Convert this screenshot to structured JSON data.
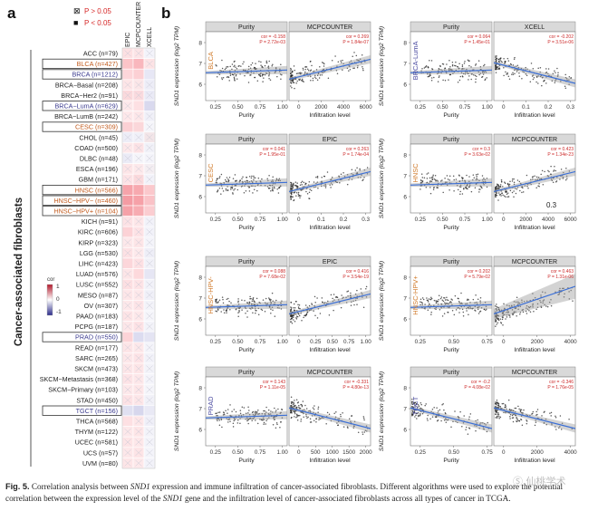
{
  "panel_a": {
    "letter": "a",
    "legend": {
      "ns": "P > 0.05",
      "sig": "P < 0.05",
      "ns_mark": "⊠",
      "sig_mark": "■"
    },
    "columns": [
      "EPIC",
      "MCPCOUNTER",
      "XCELL"
    ],
    "side_label": "Cancer-associated fibroblasts",
    "colorbar": {
      "title": "cor",
      "ticks": [
        "1",
        "0",
        "-1"
      ]
    },
    "rows": [
      {
        "label": "ACC (n=79)",
        "color": "#222222",
        "box": false,
        "cells": [
          [
            "#fde0e2",
            0
          ],
          [
            "#fce4e6",
            0
          ],
          [
            "#f3f3fa",
            0
          ]
        ]
      },
      {
        "label": "BLCA (n=427)",
        "color": "#c25b1e",
        "box": true,
        "cells": [
          [
            "#fbc4c8",
            1
          ],
          [
            "#f9b7bd",
            1
          ],
          [
            "#fde3e5",
            0
          ]
        ]
      },
      {
        "label": "BRCA (n=1212)",
        "color": "#3b3b8f",
        "box": true,
        "cells": [
          [
            "#fdd6da",
            1
          ],
          [
            "#fcd0d4",
            1
          ],
          [
            "#e7e7f5",
            1
          ]
        ]
      },
      {
        "label": "BRCA−Basal (n=208)",
        "color": "#222222",
        "box": false,
        "cells": [
          [
            "#fde5e7",
            0
          ],
          [
            "#fbe6e8",
            0
          ],
          [
            "#ededf7",
            0
          ]
        ]
      },
      {
        "label": "BRCA−Her2 (n=91)",
        "color": "#222222",
        "box": false,
        "cells": [
          [
            "#fbd9dc",
            0
          ],
          [
            "#fadade",
            0
          ],
          [
            "#eaeaf6",
            0
          ]
        ]
      },
      {
        "label": "BRCA−LumA (n=629)",
        "color": "#3b3b8f",
        "box": true,
        "cells": [
          [
            "#fde8ea",
            0
          ],
          [
            "#fde0e3",
            1
          ],
          [
            "#d9d9ee",
            1
          ]
        ]
      },
      {
        "label": "BRCA−LumB (n=242)",
        "color": "#222222",
        "box": false,
        "cells": [
          [
            "#fee8ea",
            0
          ],
          [
            "#fde7e9",
            0
          ],
          [
            "#f0f0f8",
            0
          ]
        ]
      },
      {
        "label": "CESC (n=309)",
        "color": "#c25b1e",
        "box": true,
        "cells": [
          [
            "#fbd0d4",
            1
          ],
          [
            "#fbd7da",
            1
          ],
          [
            "#f5f5fa",
            0
          ]
        ]
      },
      {
        "label": "CHOL (n=45)",
        "color": "#222222",
        "box": false,
        "cells": [
          [
            "#ededf7",
            0
          ],
          [
            "#f0f0f8",
            0
          ],
          [
            "#f3e5e8",
            0
          ]
        ]
      },
      {
        "label": "COAD (n=500)",
        "color": "#222222",
        "box": false,
        "cells": [
          [
            "#fde8ea",
            0
          ],
          [
            "#fce2e5",
            0
          ],
          [
            "#f1f1f8",
            0
          ]
        ]
      },
      {
        "label": "DLBC (n=48)",
        "color": "#222222",
        "box": false,
        "cells": [
          [
            "#ebebf6",
            0
          ],
          [
            "#f5f5fa",
            0
          ],
          [
            "#f4f4fa",
            0
          ]
        ]
      },
      {
        "label": "ESCA (n=196)",
        "color": "#222222",
        "box": false,
        "cells": [
          [
            "#fde5e7",
            0
          ],
          [
            "#fde9eb",
            0
          ],
          [
            "#f4eef2",
            0
          ]
        ]
      },
      {
        "label": "GBM (n=171)",
        "color": "#222222",
        "box": false,
        "cells": [
          [
            "#fde3e6",
            0
          ],
          [
            "#fbd9dc",
            0
          ],
          [
            "#f2f2f9",
            0
          ]
        ]
      },
      {
        "label": "HNSC (n=566)",
        "color": "#c25b1e",
        "box": true,
        "cells": [
          [
            "#f6a3aa",
            1
          ],
          [
            "#f7a9af",
            1
          ],
          [
            "#fbc8cc",
            1
          ]
        ]
      },
      {
        "label": "HNSC−HPV− (n=460)",
        "color": "#c25b1e",
        "box": true,
        "cells": [
          [
            "#f49ba3",
            1
          ],
          [
            "#f6a1a8",
            1
          ],
          [
            "#fac2c7",
            1
          ]
        ]
      },
      {
        "label": "HNSC−HPV+ (n=104)",
        "color": "#c25b1e",
        "box": true,
        "cells": [
          [
            "#f5a1a8",
            1
          ],
          [
            "#f7acb2",
            1
          ],
          [
            "#fbcdd1",
            1
          ]
        ]
      },
      {
        "label": "KICH (n=91)",
        "color": "#222222",
        "box": false,
        "cells": [
          [
            "#fde2e5",
            0
          ],
          [
            "#fde6e8",
            0
          ],
          [
            "#f2f2f9",
            0
          ]
        ]
      },
      {
        "label": "KIRC (n=606)",
        "color": "#222222",
        "box": false,
        "cells": [
          [
            "#fcd2d6",
            1
          ],
          [
            "#fde2e5",
            0
          ],
          [
            "#f2f2f9",
            0
          ]
        ]
      },
      {
        "label": "KIRP (n=323)",
        "color": "#222222",
        "box": false,
        "cells": [
          [
            "#fde8ea",
            0
          ],
          [
            "#fde5e7",
            0
          ],
          [
            "#f4f4fa",
            0
          ]
        ]
      },
      {
        "label": "LGG (n=530)",
        "color": "#222222",
        "box": false,
        "cells": [
          [
            "#fde1e4",
            0
          ],
          [
            "#fde9eb",
            0
          ],
          [
            "#eeeef7",
            0
          ]
        ]
      },
      {
        "label": "LIHC (n=423)",
        "color": "#222222",
        "box": false,
        "cells": [
          [
            "#fcd6da",
            1
          ],
          [
            "#fde0e3",
            0
          ],
          [
            "#f1f1f8",
            0
          ]
        ]
      },
      {
        "label": "LUAD (n=576)",
        "color": "#222222",
        "box": false,
        "cells": [
          [
            "#fde5e7",
            0
          ],
          [
            "#fdd9dc",
            1
          ],
          [
            "#e6e6f4",
            1
          ]
        ]
      },
      {
        "label": "LUSC (n=552)",
        "color": "#222222",
        "box": false,
        "cells": [
          [
            "#fddfe2",
            0
          ],
          [
            "#fde3e6",
            0
          ],
          [
            "#f2f2f9",
            0
          ]
        ]
      },
      {
        "label": "MESO (n=87)",
        "color": "#222222",
        "box": false,
        "cells": [
          [
            "#fde6e8",
            0
          ],
          [
            "#fde8ea",
            0
          ],
          [
            "#f0f0f8",
            0
          ]
        ]
      },
      {
        "label": "OV (n=307)",
        "color": "#222222",
        "box": false,
        "cells": [
          [
            "#fde8ea",
            0
          ],
          [
            "#fde4e7",
            0
          ],
          [
            "#f3f3f9",
            0
          ]
        ]
      },
      {
        "label": "PAAD (n=183)",
        "color": "#222222",
        "box": false,
        "cells": [
          [
            "#fde4e6",
            0
          ],
          [
            "#fde8ea",
            0
          ],
          [
            "#f5f5fa",
            0
          ]
        ]
      },
      {
        "label": "PCPG (n=187)",
        "color": "#222222",
        "box": false,
        "cells": [
          [
            "#fde7e9",
            0
          ],
          [
            "#fde2e5",
            0
          ],
          [
            "#f3f3f9",
            0
          ]
        ]
      },
      {
        "label": "PRAD (n=550)",
        "color": "#3b3b8f",
        "box": true,
        "cells": [
          [
            "#fcd3d7",
            1
          ],
          [
            "#dcdcf0",
            1
          ],
          [
            "#e4e4f3",
            1
          ]
        ]
      },
      {
        "label": "READ (n=177)",
        "color": "#222222",
        "box": false,
        "cells": [
          [
            "#fde5e7",
            0
          ],
          [
            "#fde8ea",
            0
          ],
          [
            "#f4f4fa",
            0
          ]
        ]
      },
      {
        "label": "SARC (n=265)",
        "color": "#222222",
        "box": false,
        "cells": [
          [
            "#fde7e9",
            0
          ],
          [
            "#fde3e6",
            0
          ],
          [
            "#f2f2f9",
            0
          ]
        ]
      },
      {
        "label": "SKCM (n=473)",
        "color": "#222222",
        "box": false,
        "cells": [
          [
            "#fde6e8",
            0
          ],
          [
            "#fde5e7",
            0
          ],
          [
            "#f3f3f9",
            0
          ]
        ]
      },
      {
        "label": "SKCM−Metastasis (n=368)",
        "color": "#222222",
        "box": false,
        "cells": [
          [
            "#fde3e6",
            0
          ],
          [
            "#fde7e9",
            0
          ],
          [
            "#f4f4fa",
            0
          ]
        ]
      },
      {
        "label": "SKCM−Primary (n=103)",
        "color": "#222222",
        "box": false,
        "cells": [
          [
            "#fde8ea",
            0
          ],
          [
            "#fde6e8",
            0
          ],
          [
            "#f5f5fa",
            0
          ]
        ]
      },
      {
        "label": "STAD (n=450)",
        "color": "#222222",
        "box": false,
        "cells": [
          [
            "#fde2e5",
            0
          ],
          [
            "#fde6e8",
            0
          ],
          [
            "#f1f1f8",
            0
          ]
        ]
      },
      {
        "label": "TGCT (n=156)",
        "color": "#3b3b8f",
        "box": true,
        "cells": [
          [
            "#e0e0f1",
            1
          ],
          [
            "#d7d7ed",
            1
          ],
          [
            "#e9e9f5",
            1
          ]
        ]
      },
      {
        "label": "THCA (n=568)",
        "color": "#222222",
        "box": false,
        "cells": [
          [
            "#fde0e3",
            1
          ],
          [
            "#fde6e8",
            0
          ],
          [
            "#efeff8",
            0
          ]
        ]
      },
      {
        "label": "THYM (n=122)",
        "color": "#222222",
        "box": false,
        "cells": [
          [
            "#fde8ea",
            0
          ],
          [
            "#fde5e7",
            0
          ],
          [
            "#f3f3f9",
            0
          ]
        ]
      },
      {
        "label": "UCEC (n=581)",
        "color": "#222222",
        "box": false,
        "cells": [
          [
            "#fde4e6",
            0
          ],
          [
            "#fde7e9",
            0
          ],
          [
            "#f3f3f9",
            0
          ]
        ]
      },
      {
        "label": "UCS (n=57)",
        "color": "#222222",
        "box": false,
        "cells": [
          [
            "#fde7e9",
            0
          ],
          [
            "#fde4e6",
            0
          ],
          [
            "#f4f4fa",
            0
          ]
        ]
      },
      {
        "label": "UVM (n=80)",
        "color": "#222222",
        "box": false,
        "cells": [
          [
            "#fde5e7",
            0
          ],
          [
            "#fde8ea",
            0
          ],
          [
            "#f2f2f9",
            0
          ]
        ]
      }
    ]
  },
  "panel_b": {
    "letter": "b",
    "ylabel": "SND1 expression (log2 TPM)",
    "annotation_extra": "0.3",
    "groups": [
      {
        "row": 0,
        "col": 0,
        "cancer": "BLCA",
        "cancer_color": "#d07a2a",
        "method": "MCPCOUNTER",
        "purity": {
          "xticks": [
            "0.25",
            "0.50",
            "0.75",
            "1.00"
          ],
          "cor": "cor = -0.158",
          "p": "P = 2.72e-03",
          "trend": "flat"
        },
        "infil": {
          "xticks": [
            "0",
            "2000",
            "4000",
            "6000"
          ],
          "cor": "cor = 0.269",
          "p": "P = 1.84e-07",
          "trend": "up"
        }
      },
      {
        "row": 0,
        "col": 1,
        "cancer": "BRCA-LumA",
        "cancer_color": "#4a4aa0",
        "method": "XCELL",
        "purity": {
          "xticks": [
            "0.25",
            "0.50",
            "0.75",
            "1.00"
          ],
          "cor": "cor = 0.064",
          "p": "P = 1.45e-01",
          "trend": "flat"
        },
        "infil": {
          "xticks": [
            "0",
            "0.1",
            "0.2",
            "0.3"
          ],
          "cor": "cor = -0.202",
          "p": "P = 3.51e-06",
          "trend": "down"
        }
      },
      {
        "row": 1,
        "col": 0,
        "cancer": "CESC",
        "cancer_color": "#d07a2a",
        "method": "EPIC",
        "purity": {
          "xticks": [
            "0.25",
            "0.50",
            "0.75",
            "1.00"
          ],
          "cor": "cor = 0.041",
          "p": "P = 1.95e-01",
          "trend": "flat"
        },
        "infil": {
          "xticks": [
            "0",
            "0.1",
            "0.2",
            "0.3"
          ],
          "cor": "cor = 0.263",
          "p": "P = 1.74e-04",
          "trend": "up"
        }
      },
      {
        "row": 1,
        "col": 1,
        "cancer": "HNSC",
        "cancer_color": "#d07a2a",
        "method": "MCPCOUNTER",
        "purity": {
          "xticks": [
            "0.25",
            "0.50",
            "0.75",
            "1.00"
          ],
          "cor": "cor = 0.3",
          "p": "P = 3.63e-02",
          "trend": "flat"
        },
        "infil": {
          "xticks": [
            "0",
            "2000",
            "4000",
            "6000"
          ],
          "cor": "cor = 0.423",
          "p": "P = 1.34e-23",
          "trend": "up"
        }
      },
      {
        "row": 2,
        "col": 0,
        "cancer": "HNSC-HPV-",
        "cancer_color": "#d07a2a",
        "method": "EPIC",
        "purity": {
          "xticks": [
            "0.25",
            "0.50",
            "0.75",
            "1.00"
          ],
          "cor": "cor = 0.088",
          "p": "P = 7.68e-02",
          "trend": "flat"
        },
        "infil": {
          "xticks": [
            "0",
            "0.25",
            "0.50",
            "0.75",
            "1.00"
          ],
          "cor": "cor = 0.416",
          "p": "P = 3.54e-19",
          "trend": "up"
        }
      },
      {
        "row": 2,
        "col": 1,
        "cancer": "HNSC-HPV+",
        "cancer_color": "#d07a2a",
        "method": "MCPCOUNTER",
        "purity": {
          "xticks": [
            "0.25",
            "0.50",
            "0.75"
          ],
          "cor": "cor = 0.202",
          "p": "P = 5.79e-02",
          "trend": "flat"
        },
        "infil": {
          "xticks": [
            "0",
            "2000",
            "4000"
          ],
          "cor": "cor = 0.463",
          "p": "P = 1.31e-06",
          "trend": "upwide"
        }
      },
      {
        "row": 3,
        "col": 0,
        "cancer": "PRAD",
        "cancer_color": "#4a4aa0",
        "method": "MCPCOUNTER",
        "purity": {
          "xticks": [
            "0.25",
            "0.50",
            "0.75",
            "1.00"
          ],
          "cor": "cor = 0.143",
          "p": "P = 1.11e-05",
          "trend": "flat"
        },
        "infil": {
          "xticks": [
            "0",
            "500",
            "1000",
            "1500",
            "2000"
          ],
          "cor": "cor = -0.331",
          "p": "P = 4.80e-13",
          "trend": "down"
        }
      },
      {
        "row": 3,
        "col": 1,
        "cancer": "TGCT",
        "cancer_color": "#4a4aa0",
        "method": "MCPCOUNTER",
        "purity": {
          "xticks": [
            "0.25",
            "0.50",
            "0.75"
          ],
          "cor": "cor = -0.2",
          "p": "P = 4.08e-02",
          "trend": "down"
        },
        "infil": {
          "xticks": [
            "0",
            "2000",
            "4000"
          ],
          "cor": "cor = -0.346",
          "p": "P = 1.76e-05",
          "trend": "down"
        }
      }
    ]
  },
  "caption": {
    "fig": "Fig. 5.",
    "text_a": "Correlation analysis between ",
    "gene": "SND1",
    "text_b": " expression and immune infiltration of cancer-associated fibroblasts. Different algorithms were used to explore the potential correlation between the expression level of the ",
    "text_c": " gene and the infiltration level of cancer-associated fibroblasts across all types of cancer in TCGA."
  },
  "watermark": "Ⓢ 仙桃学术"
}
